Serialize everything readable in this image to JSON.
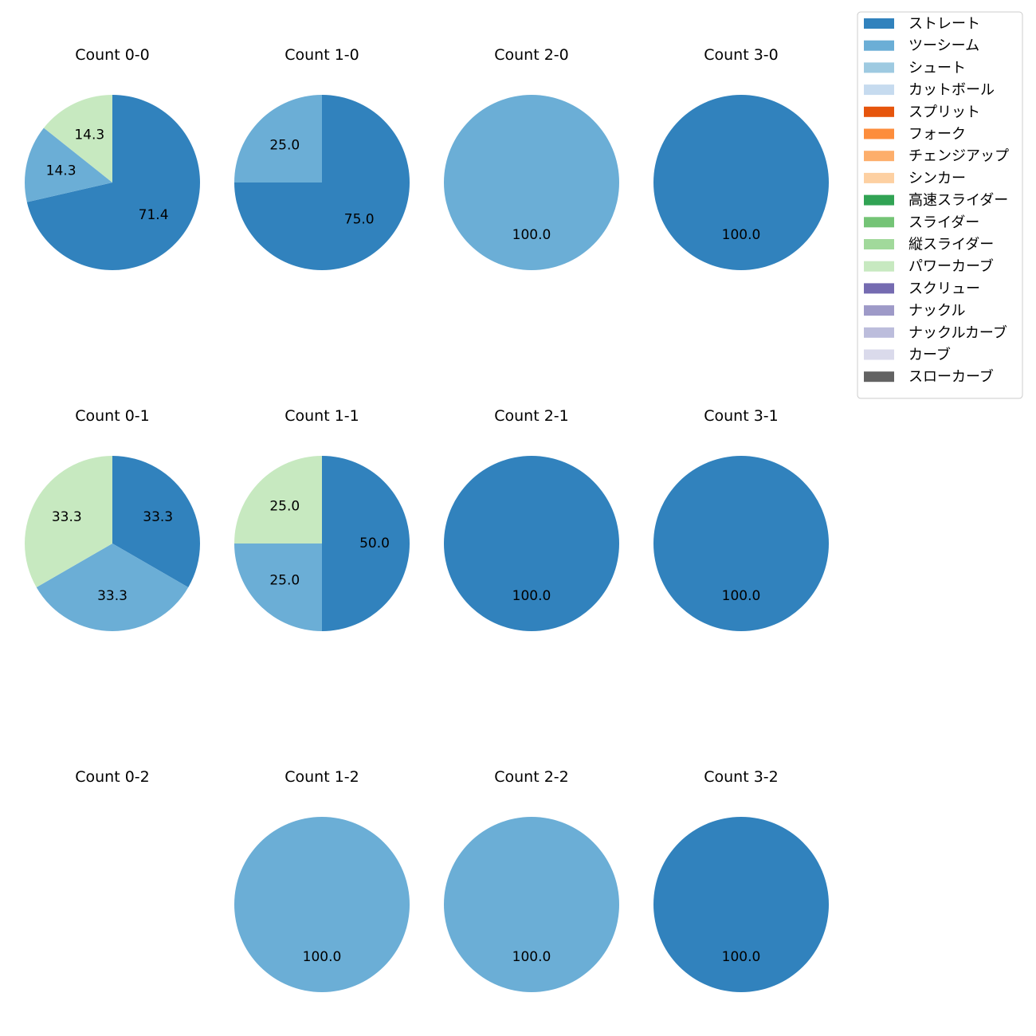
{
  "chart_data": {
    "type": "pie",
    "legend": {
      "placement": "top-right",
      "entries": [
        {
          "name": "ストレート",
          "color": "#3182bd"
        },
        {
          "name": "ツーシーム",
          "color": "#6baed6"
        },
        {
          "name": "シュート",
          "color": "#9ecae1"
        },
        {
          "name": "カットボール",
          "color": "#c6dbef"
        },
        {
          "name": "スプリット",
          "color": "#e6550d"
        },
        {
          "name": "フォーク",
          "color": "#fd8d3c"
        },
        {
          "name": "チェンジアップ",
          "color": "#fdae6b"
        },
        {
          "name": "シンカー",
          "color": "#fdd0a2"
        },
        {
          "name": "高速スライダー",
          "color": "#31a354"
        },
        {
          "name": "スライダー",
          "color": "#74c476"
        },
        {
          "name": "縦スライダー",
          "color": "#a1d99b"
        },
        {
          "name": "パワーカーブ",
          "color": "#c7e9c0"
        },
        {
          "name": "スクリュー",
          "color": "#756bb1"
        },
        {
          "name": "ナックル",
          "color": "#9e9ac8"
        },
        {
          "name": "ナックルカーブ",
          "color": "#bcbddc"
        },
        {
          "name": "カーブ",
          "color": "#dadaeb"
        },
        {
          "name": "スローカーブ",
          "color": "#636363"
        }
      ]
    },
    "pies": [
      {
        "title": "Count 0-0",
        "slices": [
          {
            "pitch": "ストレート",
            "value": 71.4,
            "label": "71.4"
          },
          {
            "pitch": "ツーシーム",
            "value": 14.3,
            "label": "14.3"
          },
          {
            "pitch": "パワーカーブ",
            "value": 14.3,
            "label": "14.3"
          }
        ]
      },
      {
        "title": "Count 1-0",
        "slices": [
          {
            "pitch": "ストレート",
            "value": 75.0,
            "label": "75.0"
          },
          {
            "pitch": "ツーシーム",
            "value": 25.0,
            "label": "25.0"
          }
        ]
      },
      {
        "title": "Count 2-0",
        "slices": [
          {
            "pitch": "ツーシーム",
            "value": 100.0,
            "label": "100.0"
          }
        ]
      },
      {
        "title": "Count 3-0",
        "slices": [
          {
            "pitch": "ストレート",
            "value": 100.0,
            "label": "100.0"
          }
        ]
      },
      {
        "title": "Count 0-1",
        "slices": [
          {
            "pitch": "ストレート",
            "value": 33.3,
            "label": "33.3"
          },
          {
            "pitch": "ツーシーム",
            "value": 33.3,
            "label": "33.3"
          },
          {
            "pitch": "パワーカーブ",
            "value": 33.3,
            "label": "33.3"
          }
        ]
      },
      {
        "title": "Count 1-1",
        "slices": [
          {
            "pitch": "ストレート",
            "value": 50.0,
            "label": "50.0"
          },
          {
            "pitch": "ツーシーム",
            "value": 25.0,
            "label": "25.0"
          },
          {
            "pitch": "パワーカーブ",
            "value": 25.0,
            "label": "25.0"
          }
        ]
      },
      {
        "title": "Count 2-1",
        "slices": [
          {
            "pitch": "ストレート",
            "value": 100.0,
            "label": "100.0"
          }
        ]
      },
      {
        "title": "Count 3-1",
        "slices": [
          {
            "pitch": "ストレート",
            "value": 100.0,
            "label": "100.0"
          }
        ]
      },
      {
        "title": "Count 0-2",
        "slices": []
      },
      {
        "title": "Count 1-2",
        "slices": [
          {
            "pitch": "ツーシーム",
            "value": 100.0,
            "label": "100.0"
          }
        ]
      },
      {
        "title": "Count 2-2",
        "slices": [
          {
            "pitch": "ツーシーム",
            "value": 100.0,
            "label": "100.0"
          }
        ]
      },
      {
        "title": "Count 3-2",
        "slices": [
          {
            "pitch": "ストレート",
            "value": 100.0,
            "label": "100.0"
          }
        ]
      }
    ]
  }
}
